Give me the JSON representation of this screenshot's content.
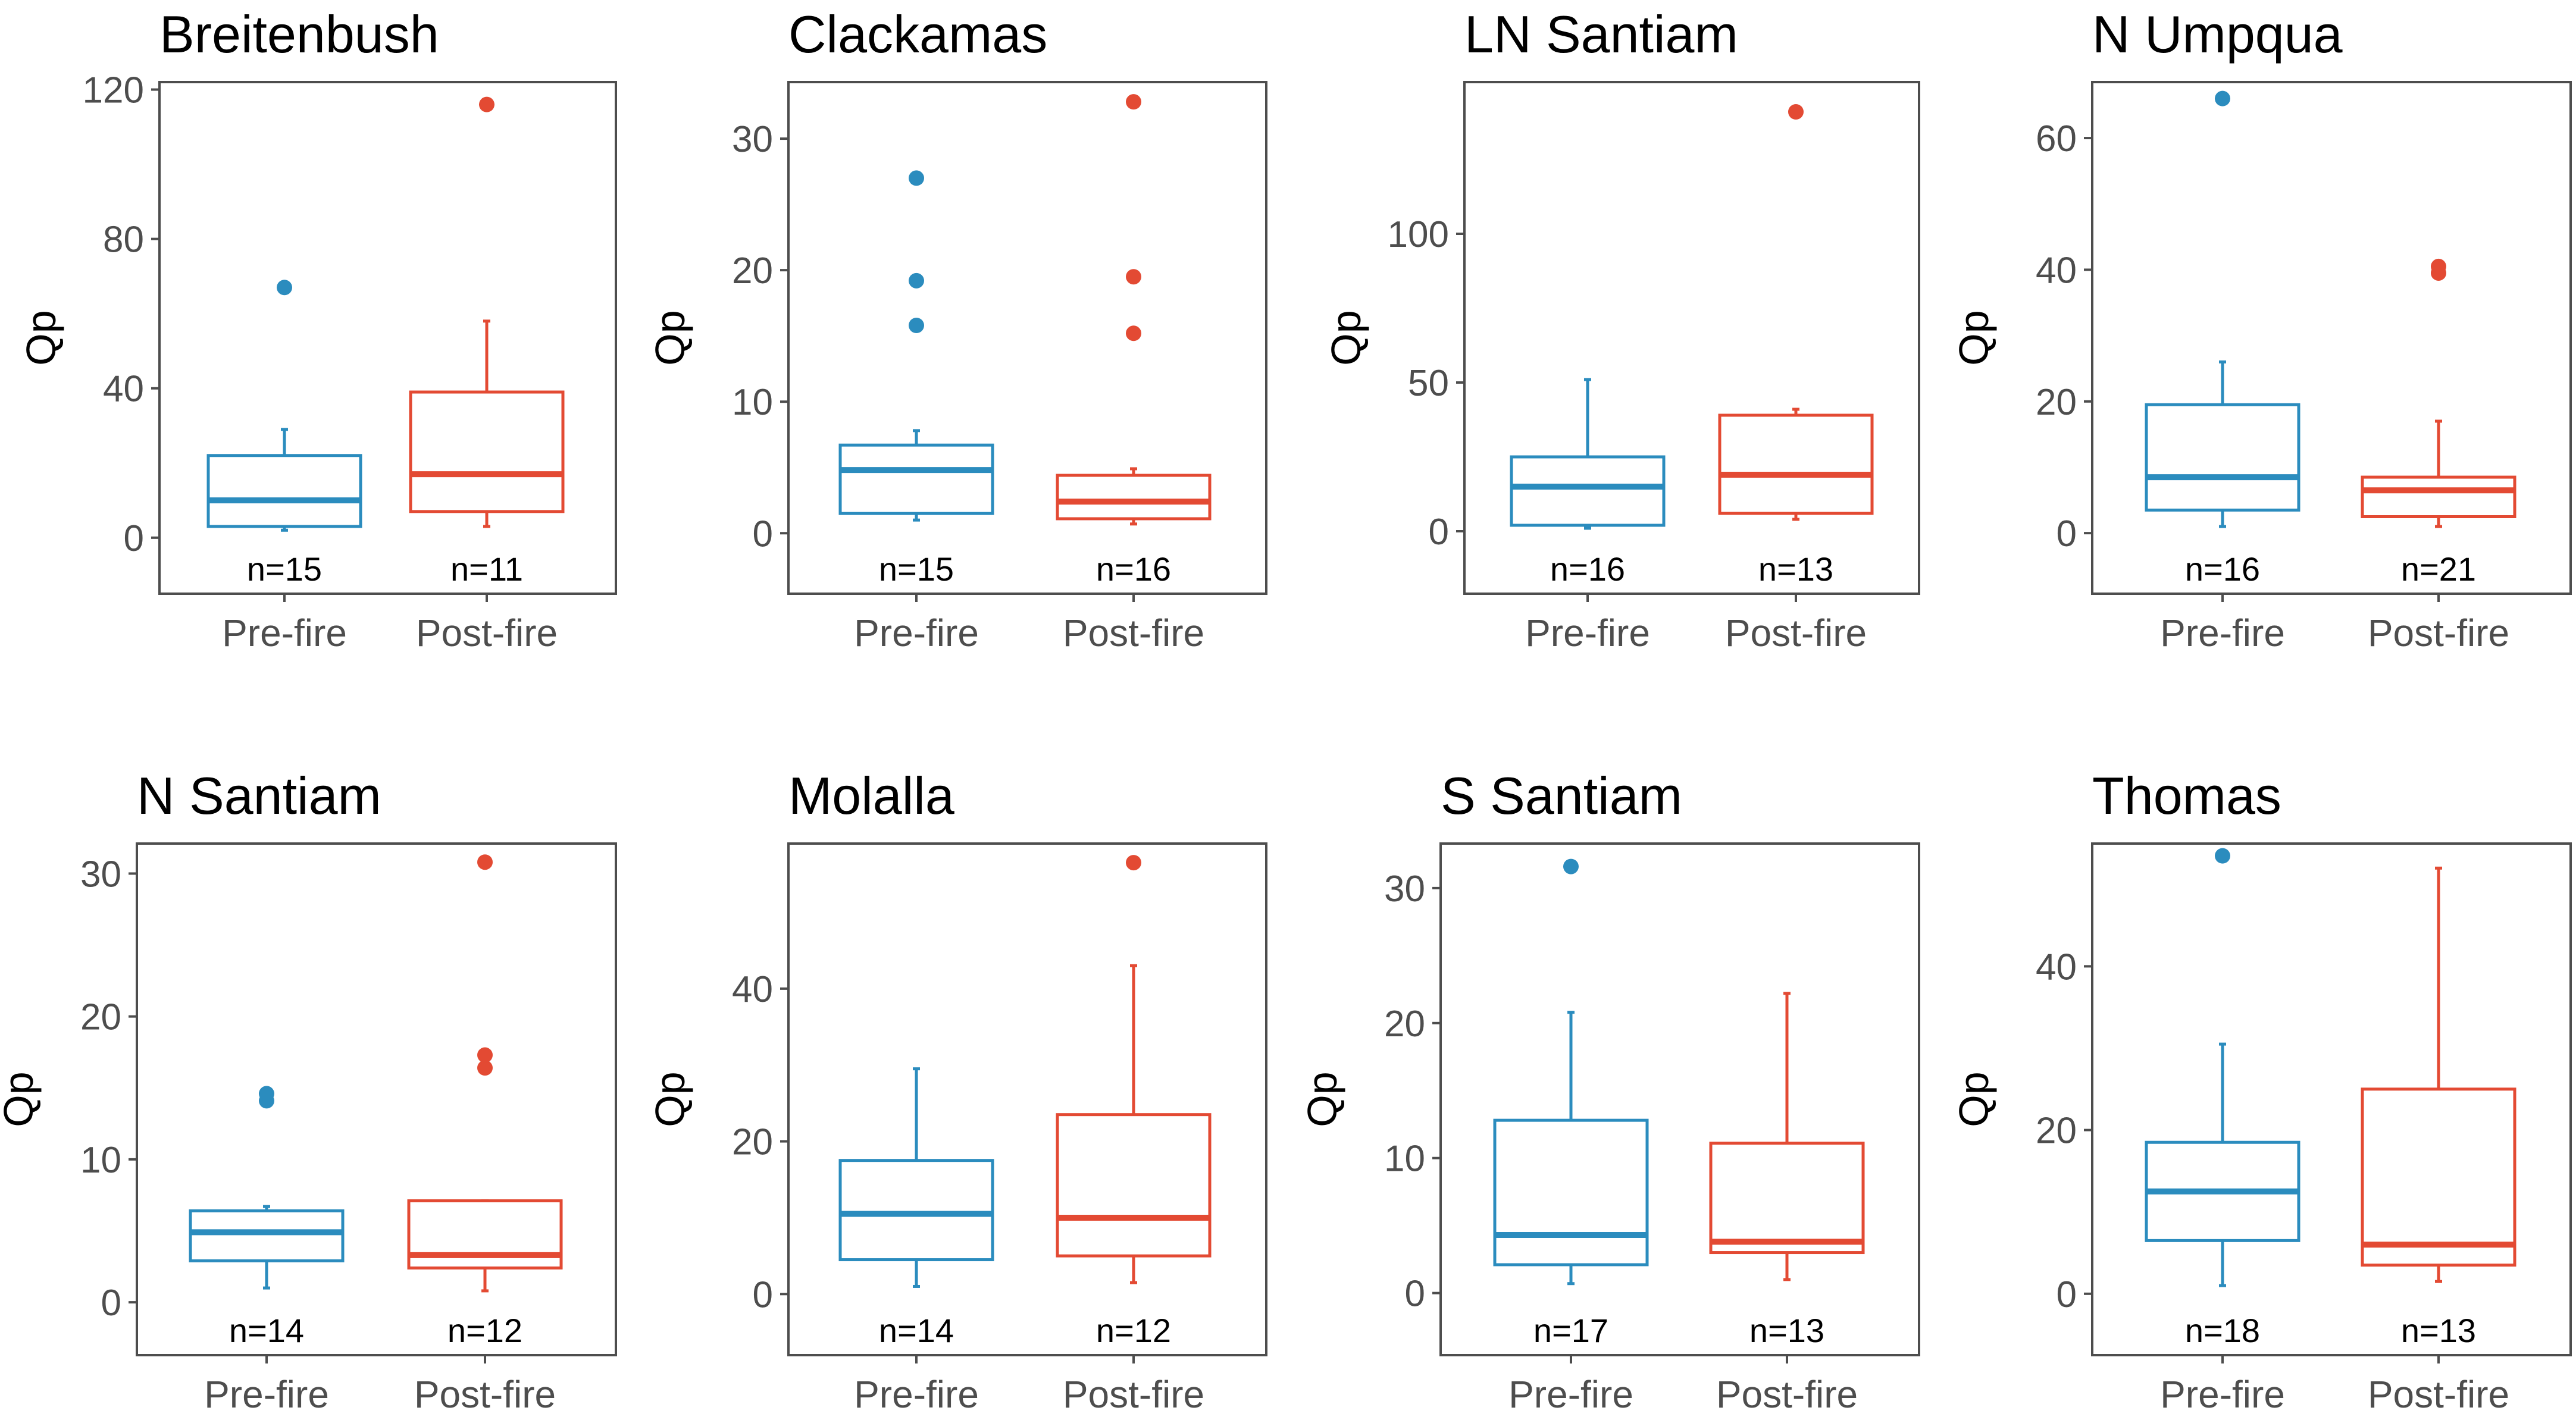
{
  "colors": {
    "pre_fire": "#2b8cbe",
    "post_fire": "#e34a33",
    "axis": "#4d4d4d"
  },
  "chart_data": [
    {
      "type": "boxplot",
      "title": "Breitenbush",
      "ylabel": "Qp",
      "categories": [
        "Pre-fire",
        "Post-fire"
      ],
      "ylim": [
        -15,
        122
      ],
      "yticks": [
        0,
        40,
        80,
        120
      ],
      "groups": [
        {
          "name": "Pre-fire",
          "n_label": "n=15",
          "whisker_low": 2,
          "q1": 3,
          "median": 10,
          "q3": 22,
          "whisker_high": 29,
          "outliers": [
            67
          ]
        },
        {
          "name": "Post-fire",
          "n_label": "n=11",
          "whisker_low": 3,
          "q1": 7,
          "median": 17,
          "q3": 39,
          "whisker_high": 58,
          "outliers": [
            116
          ]
        }
      ]
    },
    {
      "type": "boxplot",
      "title": "Clackamas",
      "ylabel": "Qp",
      "categories": [
        "Pre-fire",
        "Post-fire"
      ],
      "ylim": [
        -4.6,
        34.3
      ],
      "yticks": [
        0,
        10,
        20,
        30
      ],
      "groups": [
        {
          "name": "Pre-fire",
          "n_label": "n=15",
          "whisker_low": 1,
          "q1": 1.5,
          "median": 4.8,
          "q3": 6.7,
          "whisker_high": 7.8,
          "outliers": [
            15.8,
            19.2,
            27
          ]
        },
        {
          "name": "Post-fire",
          "n_label": "n=16",
          "whisker_low": 0.7,
          "q1": 1.1,
          "median": 2.4,
          "q3": 4.4,
          "whisker_high": 4.9,
          "outliers": [
            15.2,
            19.5,
            32.8
          ]
        }
      ]
    },
    {
      "type": "boxplot",
      "title": "LN Santiam",
      "ylabel": "Qp",
      "categories": [
        "Pre-fire",
        "Post-fire"
      ],
      "ylim": [
        -21,
        151
      ],
      "yticks": [
        0,
        50,
        100
      ],
      "groups": [
        {
          "name": "Pre-fire",
          "n_label": "n=16",
          "whisker_low": 1,
          "q1": 2,
          "median": 15,
          "q3": 25,
          "whisker_high": 51,
          "outliers": []
        },
        {
          "name": "Post-fire",
          "n_label": "n=13",
          "whisker_low": 4,
          "q1": 6,
          "median": 19,
          "q3": 39,
          "whisker_high": 41,
          "outliers": [
            141
          ]
        }
      ]
    },
    {
      "type": "boxplot",
      "title": "N Umpqua",
      "ylabel": "Qp",
      "categories": [
        "Pre-fire",
        "Post-fire"
      ],
      "ylim": [
        -9.2,
        68.5
      ],
      "yticks": [
        0,
        20,
        40,
        60
      ],
      "groups": [
        {
          "name": "Pre-fire",
          "n_label": "n=16",
          "whisker_low": 1,
          "q1": 3.5,
          "median": 8.5,
          "q3": 19.5,
          "whisker_high": 26,
          "outliers": [
            66
          ]
        },
        {
          "name": "Post-fire",
          "n_label": "n=21",
          "whisker_low": 1,
          "q1": 2.5,
          "median": 6.5,
          "q3": 8.5,
          "whisker_high": 17,
          "outliers": [
            39.5,
            40.5
          ]
        }
      ]
    },
    {
      "type": "boxplot",
      "title": "N Santiam",
      "ylabel": "Qp",
      "categories": [
        "Pre-fire",
        "Post-fire"
      ],
      "ylim": [
        -3.7,
        32.1
      ],
      "yticks": [
        0,
        10,
        20,
        30
      ],
      "groups": [
        {
          "name": "Pre-fire",
          "n_label": "n=14",
          "whisker_low": 1,
          "q1": 2.9,
          "median": 4.9,
          "q3": 6.4,
          "whisker_high": 6.7,
          "outliers": [
            14.1,
            14.6
          ]
        },
        {
          "name": "Post-fire",
          "n_label": "n=12",
          "whisker_low": 0.8,
          "q1": 2.4,
          "median": 3.3,
          "q3": 7.1,
          "whisker_high": 7.1,
          "outliers": [
            16.4,
            17.3,
            30.8
          ]
        }
      ]
    },
    {
      "type": "boxplot",
      "title": "Molalla",
      "ylabel": "Qp",
      "categories": [
        "Pre-fire",
        "Post-fire"
      ],
      "ylim": [
        -8,
        59
      ],
      "yticks": [
        0,
        20,
        40
      ],
      "groups": [
        {
          "name": "Pre-fire",
          "n_label": "n=14",
          "whisker_low": 1,
          "q1": 4.5,
          "median": 10.5,
          "q3": 17.5,
          "whisker_high": 29.5,
          "outliers": []
        },
        {
          "name": "Post-fire",
          "n_label": "n=12",
          "whisker_low": 1.5,
          "q1": 5,
          "median": 10,
          "q3": 23.5,
          "whisker_high": 43,
          "outliers": [
            56.5
          ]
        }
      ]
    },
    {
      "type": "boxplot",
      "title": "S Santiam",
      "ylabel": "Qp",
      "categories": [
        "Pre-fire",
        "Post-fire"
      ],
      "ylim": [
        -4.6,
        33.3
      ],
      "yticks": [
        0,
        10,
        20,
        30
      ],
      "groups": [
        {
          "name": "Pre-fire",
          "n_label": "n=17",
          "whisker_low": 0.7,
          "q1": 2.1,
          "median": 4.3,
          "q3": 12.8,
          "whisker_high": 20.8,
          "outliers": [
            31.6
          ]
        },
        {
          "name": "Post-fire",
          "n_label": "n=13",
          "whisker_low": 1,
          "q1": 3,
          "median": 3.8,
          "q3": 11.1,
          "whisker_high": 22.2,
          "outliers": []
        }
      ]
    },
    {
      "type": "boxplot",
      "title": "Thomas",
      "ylabel": "Qp",
      "categories": [
        "Pre-fire",
        "Post-fire"
      ],
      "ylim": [
        -7.5,
        55
      ],
      "yticks": [
        0,
        20,
        40
      ],
      "groups": [
        {
          "name": "Pre-fire",
          "n_label": "n=18",
          "whisker_low": 1,
          "q1": 6.5,
          "median": 12.5,
          "q3": 18.5,
          "whisker_high": 30.5,
          "outliers": [
            53.5
          ]
        },
        {
          "name": "Post-fire",
          "n_label": "n=13",
          "whisker_low": 1.5,
          "q1": 3.5,
          "median": 6,
          "q3": 25,
          "whisker_high": 52,
          "outliers": []
        }
      ]
    }
  ]
}
